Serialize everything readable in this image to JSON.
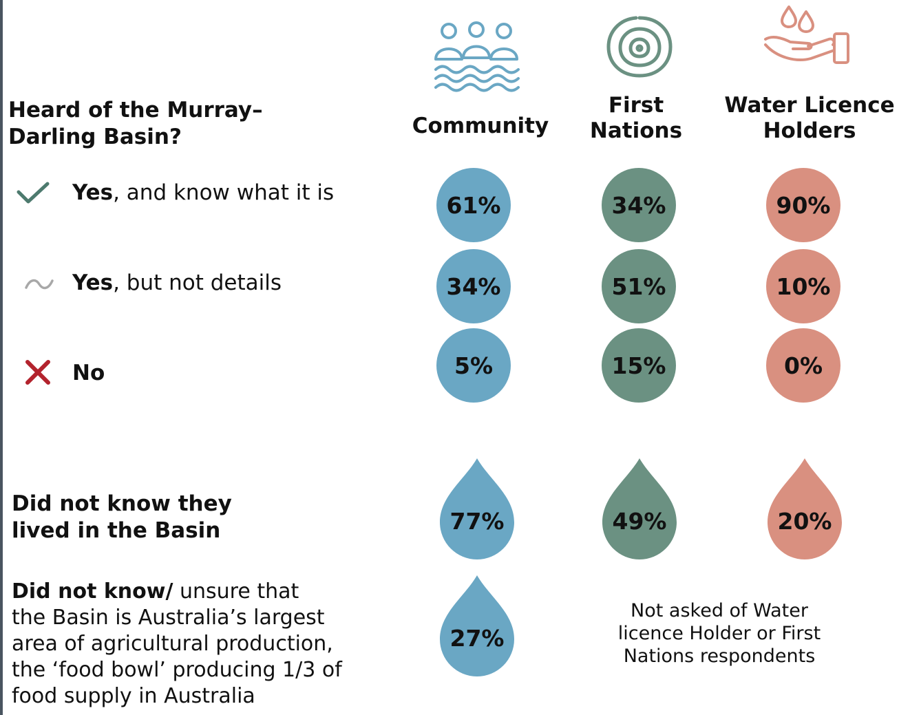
{
  "colors": {
    "community": "#6aa7c4",
    "first_nations": "#6b9182",
    "water_licence_holders": "#d99080",
    "check": "#4d7a6e",
    "tilde": "#a8a8a8",
    "cross": "#b3232d"
  },
  "icons": [
    "community-people-waves-icon",
    "concentric-circles-icon",
    "hand-water-drops-icon"
  ],
  "section1": {
    "heading_line1": "Heard of the Murray–",
    "heading_line2": "Darling Basin?",
    "rows": [
      {
        "icon": "check-icon",
        "bold": "Yes",
        "rest": ", and know what it is"
      },
      {
        "icon": "tilde-icon",
        "bold": "Yes",
        "rest": ", but not details"
      },
      {
        "icon": "cross-icon",
        "bold": "No",
        "rest": ""
      }
    ]
  },
  "columns": {
    "community": "Community",
    "first_nations_line1": "First",
    "first_nations_line2": "Nations",
    "wlh_line1": "Water Licence",
    "wlh_line2": "Holders"
  },
  "section2": {
    "label_line1": "Did not know they",
    "label_line2": "lived in the Basin"
  },
  "section3": {
    "label_bold": "Did not know/",
    "label_line1_rest": " unsure that",
    "label_line2": "the Basin is Australia’s largest",
    "label_line3": "area of agricultural production,",
    "label_line4": "the ‘food bowl’ producing 1/3 of",
    "label_line5": "food supply in Australia",
    "note_line1": "Not asked of Water",
    "note_line2": "licence Holder or First",
    "note_line3": "Nations respondents"
  },
  "chart_data": {
    "type": "table",
    "unit": "%",
    "columns": [
      "Community",
      "First Nations",
      "Water Licence Holders"
    ],
    "rows": [
      {
        "label": "Yes, and know what it is",
        "values": [
          61,
          34,
          90
        ],
        "text": [
          "61%",
          "34%",
          "90%"
        ]
      },
      {
        "label": "Yes, but not details",
        "values": [
          34,
          51,
          10
        ],
        "text": [
          "34%",
          "51%",
          "10%"
        ]
      },
      {
        "label": "No",
        "values": [
          5,
          15,
          0
        ],
        "text": [
          "5%",
          "15%",
          "0%"
        ]
      },
      {
        "label": "Did not know they lived in the Basin",
        "values": [
          77,
          49,
          20
        ],
        "text": [
          "77%",
          "49%",
          "20%"
        ]
      },
      {
        "label": "Did not know/ unsure that the Basin is Australia’s largest area of agricultural production, the ‘food bowl’ producing 1/3 of food supply in Australia",
        "values": [
          27,
          null,
          null
        ],
        "text": [
          "27%",
          null,
          null
        ]
      }
    ]
  }
}
